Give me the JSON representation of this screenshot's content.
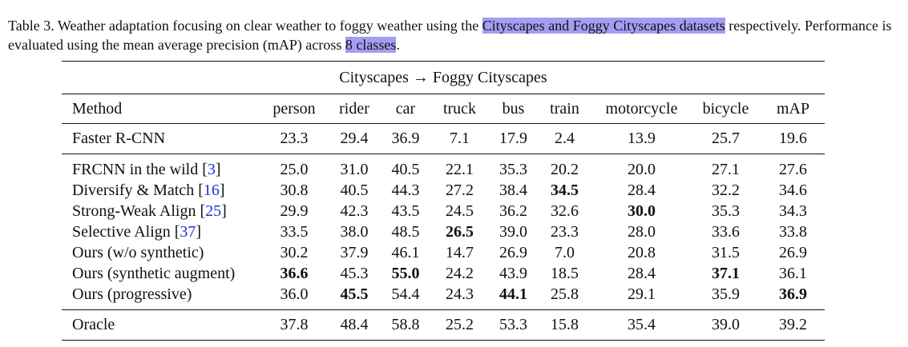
{
  "caption": {
    "prefix": "Table 3.  Weather adaptation focusing on clear weather to foggy weather using the ",
    "highlight1": "Cityscapes and Foggy Cityscapes datasets",
    "middle": " respectively. Performance is evaluated using the mean average precision (mAP) across ",
    "highlight2": "8 classes",
    "suffix": "."
  },
  "table": {
    "title": "Cityscapes → Foggy Cityscapes",
    "columns": [
      "Method",
      "person",
      "rider",
      "car",
      "truck",
      "bus",
      "train",
      "motorcycle",
      "bicycle",
      "mAP"
    ],
    "baseline": {
      "method": "Faster R-CNN",
      "cite": "",
      "values": [
        "23.3",
        "29.4",
        "36.9",
        "7.1",
        "17.9",
        "2.4",
        "13.9",
        "25.7",
        "19.6"
      ],
      "bold": []
    },
    "rows": [
      {
        "method": "FRCNN in the wild [",
        "cite": "3",
        "values": [
          "25.0",
          "31.0",
          "40.5",
          "22.1",
          "35.3",
          "20.2",
          "20.0",
          "27.1",
          "27.6"
        ],
        "bold": []
      },
      {
        "method": "Diversify & Match [",
        "cite": "16",
        "values": [
          "30.8",
          "40.5",
          "44.3",
          "27.2",
          "38.4",
          "34.5",
          "28.4",
          "32.2",
          "34.6"
        ],
        "bold": [
          5
        ]
      },
      {
        "method": "Strong-Weak Align [",
        "cite": "25",
        "values": [
          "29.9",
          "42.3",
          "43.5",
          "24.5",
          "36.2",
          "32.6",
          "30.0",
          "35.3",
          "34.3"
        ],
        "bold": [
          6
        ]
      },
      {
        "method": "Selective Align [",
        "cite": "37",
        "values": [
          "33.5",
          "38.0",
          "48.5",
          "26.5",
          "39.0",
          "23.3",
          "28.0",
          "33.6",
          "33.8"
        ],
        "bold": [
          3
        ]
      },
      {
        "method": "Ours (w/o synthetic)",
        "cite": "",
        "values": [
          "30.2",
          "37.9",
          "46.1",
          "14.7",
          "26.9",
          "7.0",
          "20.8",
          "31.5",
          "26.9"
        ],
        "bold": []
      },
      {
        "method": "Ours (synthetic augment)",
        "cite": "",
        "values": [
          "36.6",
          "45.3",
          "55.0",
          "24.2",
          "43.9",
          "18.5",
          "28.4",
          "37.1",
          "36.1"
        ],
        "bold": [
          0,
          2,
          7
        ]
      },
      {
        "method": "Ours (progressive)",
        "cite": "",
        "values": [
          "36.0",
          "45.5",
          "54.4",
          "24.3",
          "44.1",
          "25.8",
          "29.1",
          "35.9",
          "36.9"
        ],
        "bold": [
          1,
          4,
          8
        ]
      }
    ],
    "oracle": {
      "method": "Oracle",
      "cite": "",
      "values": [
        "37.8",
        "48.4",
        "58.8",
        "25.2",
        "53.3",
        "15.8",
        "35.4",
        "39.0",
        "39.2"
      ],
      "bold": []
    }
  }
}
